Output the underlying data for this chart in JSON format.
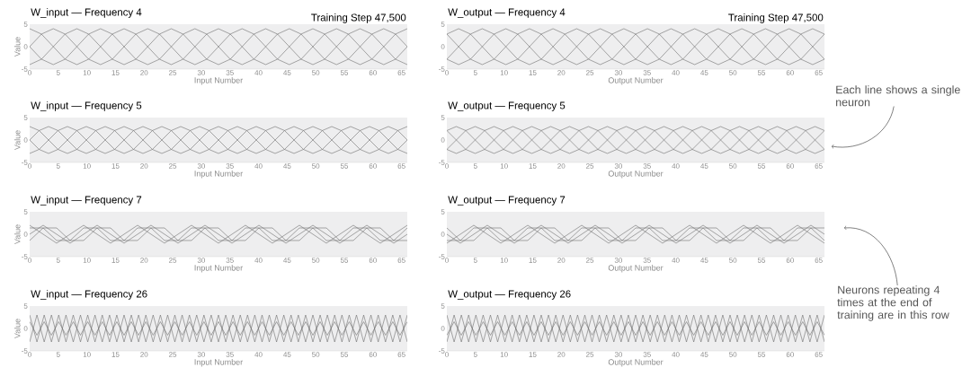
{
  "chart_data": [
    {
      "type": "line",
      "title": "W_input — Frequency 4",
      "subtitle": "Training Step 47,500",
      "xlabel": "Input Number",
      "ylabel": "Value",
      "xlim": [
        0,
        66
      ],
      "ylim": [
        -5,
        5
      ],
      "xticks": [
        0,
        5,
        10,
        15,
        20,
        25,
        30,
        35,
        40,
        45,
        50,
        55,
        60,
        65
      ],
      "yticks": [
        -5,
        0,
        5
      ],
      "x": [
        0,
        2.06,
        4.13,
        6.19,
        8.25,
        10.31,
        12.38,
        14.44,
        16.5,
        18.56,
        20.63,
        22.69,
        24.75,
        26.81,
        28.88,
        30.94,
        33,
        35.06,
        37.13,
        39.19,
        41.25,
        43.31,
        45.38,
        47.44,
        49.5,
        51.56,
        53.63,
        55.69,
        57.75,
        59.81,
        61.88,
        63.94,
        66
      ],
      "series": [
        {
          "color": "#6e6e6e",
          "values": [
            0,
            2.8,
            4,
            2.8,
            0,
            -2.8,
            -4,
            -2.8,
            0,
            2.8,
            4,
            2.8,
            0,
            -2.8,
            -4,
            -2.8,
            0,
            2.8,
            4,
            2.8,
            0,
            -2.8,
            -4,
            -2.8,
            0,
            2.8,
            4,
            2.8,
            0,
            -2.8,
            -4,
            -2.8,
            0
          ]
        },
        {
          "color": "#6e6e6e",
          "values": [
            4,
            2.8,
            0,
            -2.8,
            -4,
            -2.8,
            0,
            2.8,
            4,
            2.8,
            0,
            -2.8,
            -4,
            -2.8,
            0,
            2.8,
            4,
            2.8,
            0,
            -2.8,
            -4,
            -2.8,
            0,
            2.8,
            4,
            2.8,
            0,
            -2.8,
            -4,
            -2.8,
            0,
            2.8,
            4
          ]
        },
        {
          "color": "#6e6e6e",
          "values": [
            0,
            -2.8,
            -4,
            -2.8,
            0,
            2.8,
            4,
            2.8,
            0,
            -2.8,
            -4,
            -2.8,
            0,
            2.8,
            4,
            2.8,
            0,
            -2.8,
            -4,
            -2.8,
            0,
            2.8,
            4,
            2.8,
            0,
            -2.8,
            -4,
            -2.8,
            0,
            2.8,
            4,
            2.8,
            0
          ]
        },
        {
          "color": "#6e6e6e",
          "values": [
            -4,
            -2.8,
            0,
            2.8,
            4,
            2.8,
            0,
            -2.8,
            -4,
            -2.8,
            0,
            2.8,
            4,
            2.8,
            0,
            -2.8,
            -4,
            -2.8,
            0,
            2.8,
            4,
            2.8,
            0,
            -2.8,
            -4,
            -2.8,
            0,
            2.8,
            4,
            2.8,
            0,
            -2.8,
            -4
          ]
        }
      ]
    },
    {
      "type": "line",
      "title": "W_output — Frequency 4",
      "subtitle": "Training Step 47,500",
      "xlabel": "Output Number",
      "xlim": [
        0,
        66
      ],
      "ylim": [
        -5,
        5
      ],
      "xticks": [
        0,
        5,
        10,
        15,
        20,
        25,
        30,
        35,
        40,
        45,
        50,
        55,
        60,
        65
      ],
      "yticks": [
        -5,
        0,
        5
      ],
      "x": [
        0,
        2.06,
        4.13,
        6.19,
        8.25,
        10.31,
        12.38,
        14.44,
        16.5,
        18.56,
        20.63,
        22.69,
        24.75,
        26.81,
        28.88,
        30.94,
        33,
        35.06,
        37.13,
        39.19,
        41.25,
        43.31,
        45.38,
        47.44,
        49.5,
        51.56,
        53.63,
        55.69,
        57.75,
        59.81,
        61.88,
        63.94,
        66
      ],
      "series": [
        {
          "color": "#6e6e6e",
          "values": [
            2.8,
            4,
            2.8,
            0,
            -2.8,
            -4,
            -2.8,
            0,
            2.8,
            4,
            2.8,
            0,
            -2.8,
            -4,
            -2.8,
            0,
            2.8,
            4,
            2.8,
            0,
            -2.8,
            -4,
            -2.8,
            0,
            2.8,
            4,
            2.8,
            0,
            -2.8,
            -4,
            -2.8,
            0,
            2.8
          ]
        },
        {
          "color": "#6e6e6e",
          "values": [
            2.8,
            0,
            -2.8,
            -4,
            -2.8,
            0,
            2.8,
            4,
            2.8,
            0,
            -2.8,
            -4,
            -2.8,
            0,
            2.8,
            4,
            2.8,
            0,
            -2.8,
            -4,
            -2.8,
            0,
            2.8,
            4,
            2.8,
            0,
            -2.8,
            -4,
            -2.8,
            0,
            2.8,
            4,
            2.8
          ]
        },
        {
          "color": "#6e6e6e",
          "values": [
            -2.8,
            -4,
            -2.8,
            0,
            2.8,
            4,
            2.8,
            0,
            -2.8,
            -4,
            -2.8,
            0,
            2.8,
            4,
            2.8,
            0,
            -2.8,
            -4,
            -2.8,
            0,
            2.8,
            4,
            2.8,
            0,
            -2.8,
            -4,
            -2.8,
            0,
            2.8,
            4,
            2.8,
            0,
            -2.8
          ]
        },
        {
          "color": "#6e6e6e",
          "values": [
            -2.8,
            0,
            2.8,
            4,
            2.8,
            0,
            -2.8,
            -4,
            -2.8,
            0,
            2.8,
            4,
            2.8,
            0,
            -2.8,
            -4,
            -2.8,
            0,
            2.8,
            4,
            2.8,
            0,
            -2.8,
            -4,
            -2.8,
            0,
            2.8,
            4,
            2.8,
            0,
            -2.8,
            -4,
            -2.8
          ]
        }
      ]
    },
    {
      "type": "line",
      "title": "W_input — Frequency 5",
      "xlabel": "Input Number",
      "ylabel": "Value",
      "xlim": [
        0,
        66
      ],
      "ylim": [
        -5,
        5
      ],
      "xticks": [
        0,
        5,
        10,
        15,
        20,
        25,
        30,
        35,
        40,
        45,
        50,
        55,
        60,
        65
      ],
      "yticks": [
        -5,
        0,
        5
      ],
      "x": [
        0,
        1.65,
        3.3,
        4.95,
        6.6,
        8.25,
        9.9,
        11.55,
        13.2,
        14.85,
        16.5,
        18.15,
        19.8,
        21.45,
        23.1,
        24.75,
        26.4,
        28.05,
        29.7,
        31.35,
        33,
        34.65,
        36.3,
        37.95,
        39.6,
        41.25,
        42.9,
        44.55,
        46.2,
        47.85,
        49.5,
        51.15,
        52.8,
        54.45,
        56.1,
        57.75,
        59.4,
        61.05,
        62.7,
        64.35,
        66
      ],
      "series": [
        {
          "color": "#6e6e6e",
          "values": [
            0,
            2.1,
            3,
            2.1,
            0,
            -2.1,
            -3,
            -2.1,
            0,
            2.1,
            3,
            2.1,
            0,
            -2.1,
            -3,
            -2.1,
            0,
            2.1,
            3,
            2.1,
            0,
            -2.1,
            -3,
            -2.1,
            0,
            2.1,
            3,
            2.1,
            0,
            -2.1,
            -3,
            -2.1,
            0,
            2.1,
            3,
            2.1,
            0,
            -2.1,
            -3,
            -2.1,
            0
          ]
        },
        {
          "color": "#6e6e6e",
          "values": [
            3,
            2.1,
            0,
            -2.1,
            -3,
            -2.1,
            0,
            2.1,
            3,
            2.1,
            0,
            -2.1,
            -3,
            -2.1,
            0,
            2.1,
            3,
            2.1,
            0,
            -2.1,
            -3,
            -2.1,
            0,
            2.1,
            3,
            2.1,
            0,
            -2.1,
            -3,
            -2.1,
            0,
            2.1,
            3,
            2.1,
            0,
            -2.1,
            -3,
            -2.1,
            0,
            2.1,
            3
          ]
        },
        {
          "color": "#6e6e6e",
          "values": [
            0,
            -2.1,
            -3,
            -2.1,
            0,
            2.1,
            3,
            2.1,
            0,
            -2.1,
            -3,
            -2.1,
            0,
            2.1,
            3,
            2.1,
            0,
            -2.1,
            -3,
            -2.1,
            0,
            2.1,
            3,
            2.1,
            0,
            -2.1,
            -3,
            -2.1,
            0,
            2.1,
            3,
            2.1,
            0,
            -2.1,
            -3,
            -2.1,
            0,
            2.1,
            3,
            2.1,
            0
          ]
        },
        {
          "color": "#6e6e6e",
          "values": [
            -3,
            -2.1,
            0,
            2.1,
            3,
            2.1,
            0,
            -2.1,
            -3,
            -2.1,
            0,
            2.1,
            3,
            2.1,
            0,
            -2.1,
            -3,
            -2.1,
            0,
            2.1,
            3,
            2.1,
            0,
            -2.1,
            -3,
            -2.1,
            0,
            2.1,
            3,
            2.1,
            0,
            -2.1,
            -3,
            -2.1,
            0,
            2.1,
            3,
            2.1,
            0,
            -2.1,
            -3
          ]
        }
      ]
    },
    {
      "type": "line",
      "title": "W_output — Frequency 5",
      "xlabel": "Output Number",
      "xlim": [
        0,
        66
      ],
      "ylim": [
        -5,
        5
      ],
      "xticks": [
        0,
        5,
        10,
        15,
        20,
        25,
        30,
        35,
        40,
        45,
        50,
        55,
        60,
        65
      ],
      "yticks": [
        -5,
        0,
        5
      ],
      "annotations": [
        "Each line shows a single neuron"
      ],
      "x": [
        0,
        1.65,
        3.3,
        4.95,
        6.6,
        8.25,
        9.9,
        11.55,
        13.2,
        14.85,
        16.5,
        18.15,
        19.8,
        21.45,
        23.1,
        24.75,
        26.4,
        28.05,
        29.7,
        31.35,
        33,
        34.65,
        36.3,
        37.95,
        39.6,
        41.25,
        42.9,
        44.55,
        46.2,
        47.85,
        49.5,
        51.15,
        52.8,
        54.45,
        56.1,
        57.75,
        59.4,
        61.05,
        62.7,
        64.35,
        66
      ],
      "series": [
        {
          "color": "#6e6e6e",
          "values": [
            2.1,
            3,
            2.1,
            0,
            -2.1,
            -3,
            -2.1,
            0,
            2.1,
            3,
            2.1,
            0,
            -2.1,
            -3,
            -2.1,
            0,
            2.1,
            3,
            2.1,
            0,
            -2.1,
            -3,
            -2.1,
            0,
            2.1,
            3,
            2.1,
            0,
            -2.1,
            -3,
            -2.1,
            0,
            2.1,
            3,
            2.1,
            0,
            -2.1,
            -3,
            -2.1,
            0,
            2.1
          ]
        },
        {
          "color": "#6e6e6e",
          "values": [
            2.1,
            0,
            -2.1,
            -3,
            -2.1,
            0,
            2.1,
            3,
            2.1,
            0,
            -2.1,
            -3,
            -2.1,
            0,
            2.1,
            3,
            2.1,
            0,
            -2.1,
            -3,
            -2.1,
            0,
            2.1,
            3,
            2.1,
            0,
            -2.1,
            -3,
            -2.1,
            0,
            2.1,
            3,
            2.1,
            0,
            -2.1,
            -3,
            -2.1,
            0,
            2.1,
            3,
            2.1
          ]
        },
        {
          "color": "#6e6e6e",
          "values": [
            -2.1,
            -3,
            -2.1,
            0,
            2.1,
            3,
            2.1,
            0,
            -2.1,
            -3,
            -2.1,
            0,
            2.1,
            3,
            2.1,
            0,
            -2.1,
            -3,
            -2.1,
            0,
            2.1,
            3,
            2.1,
            0,
            -2.1,
            -3,
            -2.1,
            0,
            2.1,
            3,
            2.1,
            0,
            -2.1,
            -3,
            -2.1,
            0,
            2.1,
            3,
            2.1,
            0,
            -2.1
          ]
        },
        {
          "color": "#6e6e6e",
          "values": [
            -2.1,
            0,
            2.1,
            3,
            2.1,
            0,
            -2.1,
            -3,
            -2.1,
            0,
            2.1,
            3,
            2.1,
            0,
            -2.1,
            -3,
            -2.1,
            0,
            2.1,
            3,
            2.1,
            0,
            -2.1,
            -3,
            -2.1,
            0,
            2.1,
            3,
            2.1,
            0,
            -2.1,
            -3,
            -2.1,
            0,
            2.1,
            3,
            2.1,
            0,
            -2.1,
            -3,
            -2.1
          ]
        }
      ]
    },
    {
      "type": "line",
      "title": "W_input — Frequency 7",
      "xlabel": "Input Number",
      "ylabel": "Value",
      "xlim": [
        0,
        66
      ],
      "ylim": [
        -5,
        5
      ],
      "xticks": [
        0,
        5,
        10,
        15,
        20,
        25,
        30,
        35,
        40,
        45,
        50,
        55,
        60,
        65
      ],
      "yticks": [
        -5,
        0,
        5
      ],
      "x": [
        0,
        2.36,
        4.71,
        7.07,
        9.43,
        11.79,
        14.14,
        16.5,
        18.86,
        21.21,
        23.57,
        25.93,
        28.29,
        30.64,
        33,
        35.36,
        37.71,
        40.07,
        42.43,
        44.79,
        47.14,
        49.5,
        51.86,
        54.21,
        56.57,
        58.93,
        61.29,
        63.64,
        66
      ],
      "series": [
        {
          "color": "#6e6e6e",
          "values": [
            0,
            2,
            0,
            -2,
            0,
            2,
            0,
            -2,
            0,
            2,
            0,
            -2,
            0,
            2,
            0,
            -2,
            0,
            2,
            0,
            -2,
            0,
            2,
            0,
            -2,
            0,
            2,
            0,
            -2,
            0
          ]
        },
        {
          "color": "#6e6e6e",
          "values": [
            2,
            0,
            -2,
            0,
            2,
            0,
            -2,
            0,
            2,
            0,
            -2,
            0,
            2,
            0,
            -2,
            0,
            2,
            0,
            -2,
            0,
            2,
            0,
            -2,
            0,
            2,
            0,
            -2,
            0,
            2
          ]
        },
        {
          "color": "#6e6e6e",
          "values": [
            1.4,
            1.4,
            -1.4,
            -1.4,
            1.4,
            1.4,
            -1.4,
            -1.4,
            1.4,
            1.4,
            -1.4,
            -1.4,
            1.4,
            1.4,
            -1.4,
            -1.4,
            1.4,
            1.4,
            -1.4,
            -1.4,
            1.4,
            1.4,
            -1.4,
            -1.4,
            1.4,
            1.4,
            -1.4,
            -1.4,
            1.4
          ]
        },
        {
          "color": "#6e6e6e",
          "values": [
            -1.4,
            1.4,
            1.4,
            -1.4,
            -1.4,
            1.4,
            1.4,
            -1.4,
            -1.4,
            1.4,
            1.4,
            -1.4,
            -1.4,
            1.4,
            1.4,
            -1.4,
            -1.4,
            1.4,
            1.4,
            -1.4,
            -1.4,
            1.4,
            1.4,
            -1.4,
            -1.4,
            1.4,
            1.4,
            -1.4,
            -1.4
          ]
        }
      ]
    },
    {
      "type": "line",
      "title": "W_output — Frequency 7",
      "xlabel": "Output Number",
      "xlim": [
        0,
        66
      ],
      "ylim": [
        -5,
        5
      ],
      "xticks": [
        0,
        5,
        10,
        15,
        20,
        25,
        30,
        35,
        40,
        45,
        50,
        55,
        60,
        65
      ],
      "yticks": [
        -5,
        0,
        5
      ],
      "annotations": [
        "Neurons repeating 4 times at the end of training are in this row"
      ],
      "x": [
        0,
        2.36,
        4.71,
        7.07,
        9.43,
        11.79,
        14.14,
        16.5,
        18.86,
        21.21,
        23.57,
        25.93,
        28.29,
        30.64,
        33,
        35.36,
        37.71,
        40.07,
        42.43,
        44.79,
        47.14,
        49.5,
        51.86,
        54.21,
        56.57,
        58.93,
        61.29,
        63.64,
        66
      ],
      "series": [
        {
          "color": "#6e6e6e",
          "values": [
            0,
            -2,
            0,
            2,
            0,
            -2,
            0,
            2,
            0,
            -2,
            0,
            2,
            0,
            -2,
            0,
            2,
            0,
            -2,
            0,
            2,
            0,
            -2,
            0,
            2,
            0,
            -2,
            0,
            2,
            0
          ]
        },
        {
          "color": "#6e6e6e",
          "values": [
            -2,
            0,
            2,
            0,
            -2,
            0,
            2,
            0,
            -2,
            0,
            2,
            0,
            -2,
            0,
            2,
            0,
            -2,
            0,
            2,
            0,
            -2,
            0,
            2,
            0,
            -2,
            0,
            2,
            0,
            -2
          ]
        },
        {
          "color": "#6e6e6e",
          "values": [
            -1.4,
            -1.4,
            1.4,
            1.4,
            -1.4,
            -1.4,
            1.4,
            1.4,
            -1.4,
            -1.4,
            1.4,
            1.4,
            -1.4,
            -1.4,
            1.4,
            1.4,
            -1.4,
            -1.4,
            1.4,
            1.4,
            -1.4,
            -1.4,
            1.4,
            1.4,
            -1.4,
            -1.4,
            1.4,
            1.4,
            -1.4
          ]
        },
        {
          "color": "#6e6e6e",
          "values": [
            1.4,
            -1.4,
            -1.4,
            1.4,
            1.4,
            -1.4,
            -1.4,
            1.4,
            1.4,
            -1.4,
            -1.4,
            1.4,
            1.4,
            -1.4,
            -1.4,
            1.4,
            1.4,
            -1.4,
            -1.4,
            1.4,
            1.4,
            -1.4,
            -1.4,
            1.4,
            1.4,
            -1.4,
            -1.4,
            1.4,
            1.4
          ]
        }
      ]
    },
    {
      "type": "line",
      "title": "W_input — Frequency 26",
      "xlabel": "Input Number",
      "ylabel": "Value",
      "xlim": [
        0,
        66
      ],
      "ylim": [
        -5,
        5
      ],
      "xticks": [
        0,
        5,
        10,
        15,
        20,
        25,
        30,
        35,
        40,
        45,
        50,
        55,
        60,
        65
      ],
      "yticks": [
        -5,
        0,
        5
      ],
      "x": [
        0,
        1.27,
        2.54,
        3.81,
        5.08,
        6.35,
        7.62,
        8.88,
        10.15,
        11.42,
        12.69,
        13.96,
        15.23,
        16.5,
        17.77,
        19.04,
        20.31,
        21.58,
        22.85,
        24.12,
        25.38,
        26.65,
        27.92,
        29.19,
        30.46,
        31.73,
        33,
        34.27,
        35.54,
        36.81,
        38.08,
        39.35,
        40.62,
        41.88,
        43.15,
        44.42,
        45.69,
        46.96,
        48.23,
        49.5,
        50.77,
        52.04,
        53.31,
        54.58,
        55.85,
        57.12,
        58.38,
        59.65,
        60.92,
        62.19,
        63.46,
        64.73,
        66
      ],
      "series": [
        {
          "color": "#6e6e6e",
          "values": [
            3,
            -3,
            3,
            -3,
            3,
            -3,
            3,
            -3,
            3,
            -3,
            3,
            -3,
            3,
            -3,
            3,
            -3,
            3,
            -3,
            3,
            -3,
            3,
            -3,
            3,
            -3,
            3,
            -3,
            3,
            -3,
            3,
            -3,
            3,
            -3,
            3,
            -3,
            3,
            -3,
            3,
            -3,
            3,
            -3,
            3,
            -3,
            3,
            -3,
            3,
            -3,
            3,
            -3,
            3,
            -3,
            3,
            -3,
            3
          ]
        },
        {
          "color": "#6e6e6e",
          "values": [
            -3,
            3,
            -3,
            3,
            -3,
            3,
            -3,
            3,
            -3,
            3,
            -3,
            3,
            -3,
            3,
            -3,
            3,
            -3,
            3,
            -3,
            3,
            -3,
            3,
            -3,
            3,
            -3,
            3,
            -3,
            3,
            -3,
            3,
            -3,
            3,
            -3,
            3,
            -3,
            3,
            -3,
            3,
            -3,
            3,
            -3,
            3,
            -3,
            3,
            -3,
            3,
            -3,
            3,
            -3,
            3,
            -3,
            3,
            -3
          ]
        },
        {
          "color": "#6e6e6e",
          "values": [
            1.5,
            -1.5,
            1.5,
            -1.5,
            1.5,
            -1.5,
            1.5,
            -1.5,
            1.5,
            -1.5,
            1.5,
            -1.5,
            1.5,
            -1.5,
            1.5,
            -1.5,
            1.5,
            -1.5,
            1.5,
            -1.5,
            1.5,
            -1.5,
            1.5,
            -1.5,
            1.5,
            -1.5,
            1.5,
            -1.5,
            1.5,
            -1.5,
            1.5,
            -1.5,
            1.5,
            -1.5,
            1.5,
            -1.5,
            1.5,
            -1.5,
            1.5,
            -1.5,
            1.5,
            -1.5,
            1.5,
            -1.5,
            1.5,
            -1.5,
            1.5,
            -1.5,
            1.5,
            -1.5,
            1.5,
            -1.5,
            1.5
          ]
        }
      ]
    },
    {
      "type": "line",
      "title": "W_output — Frequency 26",
      "xlabel": "Output Number",
      "xlim": [
        0,
        66
      ],
      "ylim": [
        -5,
        5
      ],
      "xticks": [
        0,
        5,
        10,
        15,
        20,
        25,
        30,
        35,
        40,
        45,
        50,
        55,
        60,
        65
      ],
      "yticks": [
        -5,
        0,
        5
      ],
      "x": [
        0,
        1.27,
        2.54,
        3.81,
        5.08,
        6.35,
        7.62,
        8.88,
        10.15,
        11.42,
        12.69,
        13.96,
        15.23,
        16.5,
        17.77,
        19.04,
        20.31,
        21.58,
        22.85,
        24.12,
        25.38,
        26.65,
        27.92,
        29.19,
        30.46,
        31.73,
        33,
        34.27,
        35.54,
        36.81,
        38.08,
        39.35,
        40.62,
        41.88,
        43.15,
        44.42,
        45.69,
        46.96,
        48.23,
        49.5,
        50.77,
        52.04,
        53.31,
        54.58,
        55.85,
        57.12,
        58.38,
        59.65,
        60.92,
        62.19,
        63.46,
        64.73,
        66
      ],
      "series": [
        {
          "color": "#6e6e6e",
          "values": [
            3,
            -3,
            3,
            -3,
            3,
            -3,
            3,
            -3,
            3,
            -3,
            3,
            -3,
            3,
            -3,
            3,
            -3,
            3,
            -3,
            3,
            -3,
            3,
            -3,
            3,
            -3,
            3,
            -3,
            3,
            -3,
            3,
            -3,
            3,
            -3,
            3,
            -3,
            3,
            -3,
            3,
            -3,
            3,
            -3,
            3,
            -3,
            3,
            -3,
            3,
            -3,
            3,
            -3,
            3,
            -3,
            3,
            -3,
            3
          ]
        },
        {
          "color": "#6e6e6e",
          "values": [
            -3,
            3,
            -3,
            3,
            -3,
            3,
            -3,
            3,
            -3,
            3,
            -3,
            3,
            -3,
            3,
            -3,
            3,
            -3,
            3,
            -3,
            3,
            -3,
            3,
            -3,
            3,
            -3,
            3,
            -3,
            3,
            -3,
            3,
            -3,
            3,
            -3,
            3,
            -3,
            3,
            -3,
            3,
            -3,
            3,
            -3,
            3,
            -3,
            3,
            -3,
            3,
            -3,
            3,
            -3,
            3,
            -3,
            3,
            -3
          ]
        },
        {
          "color": "#6e6e6e",
          "values": [
            -1.5,
            1.5,
            -1.5,
            1.5,
            -1.5,
            1.5,
            -1.5,
            1.5,
            -1.5,
            1.5,
            -1.5,
            1.5,
            -1.5,
            1.5,
            -1.5,
            1.5,
            -1.5,
            1.5,
            -1.5,
            1.5,
            -1.5,
            1.5,
            -1.5,
            1.5,
            -1.5,
            1.5,
            -1.5,
            1.5,
            -1.5,
            1.5,
            -1.5,
            1.5,
            -1.5,
            1.5,
            -1.5,
            1.5,
            -1.5,
            1.5,
            -1.5,
            1.5,
            -1.5,
            1.5,
            -1.5,
            1.5,
            -1.5,
            1.5,
            -1.5,
            1.5,
            -1.5,
            1.5,
            -1.5,
            1.5,
            -1.5
          ]
        }
      ]
    }
  ]
}
